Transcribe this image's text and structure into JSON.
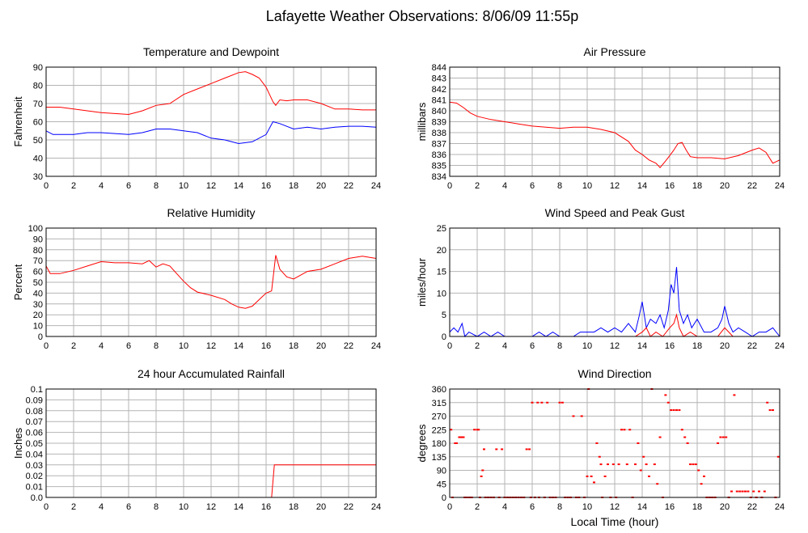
{
  "page": {
    "title": "Lafayette Weather Observations: 8/06/09 11:55p",
    "xlabel": "Local Time (hour)"
  },
  "chart_data": [
    {
      "type": "line",
      "title": "Temperature and Dewpoint",
      "xlabel": "",
      "ylabel": "Fahrenheit",
      "xlim": [
        0,
        24
      ],
      "ylim": [
        30,
        90
      ],
      "xticks": [
        0,
        2,
        4,
        6,
        8,
        10,
        12,
        14,
        16,
        18,
        20,
        22,
        24
      ],
      "yticks": [
        30,
        40,
        50,
        60,
        70,
        80,
        90
      ],
      "grid": true,
      "series": [
        {
          "color": "#ff0000",
          "x": [
            0,
            1,
            2,
            3,
            4,
            5,
            6,
            7,
            8,
            9,
            10,
            11,
            12,
            13,
            14,
            14.5,
            15,
            15.5,
            16,
            16.5,
            16.7,
            17,
            17.5,
            18,
            19,
            20,
            21,
            22,
            23,
            24
          ],
          "y": [
            68,
            68,
            67,
            66,
            65,
            64.5,
            64,
            66,
            69,
            70,
            75,
            78,
            81,
            84,
            87,
            87.5,
            86,
            84,
            79,
            71,
            69,
            72,
            71.5,
            72,
            72,
            70,
            67,
            67,
            66.5,
            66.5
          ]
        },
        {
          "color": "#0000ff",
          "x": [
            0,
            0.5,
            1,
            2,
            3,
            4,
            5,
            6,
            7,
            8,
            9,
            10,
            11,
            12,
            13,
            14,
            15,
            16,
            16.5,
            17,
            18,
            19,
            20,
            21,
            22,
            23,
            24
          ],
          "y": [
            55,
            53,
            53,
            53,
            54,
            54,
            53.5,
            53,
            54,
            56,
            56,
            55,
            54,
            51,
            50,
            48,
            49,
            53,
            60,
            59,
            56,
            57,
            56,
            57,
            57.5,
            57.5,
            57
          ]
        }
      ]
    },
    {
      "type": "line",
      "title": "Air Pressure",
      "xlabel": "",
      "ylabel": "millibars",
      "xlim": [
        0,
        24
      ],
      "ylim": [
        834,
        844
      ],
      "xticks": [
        0,
        2,
        4,
        6,
        8,
        10,
        12,
        14,
        16,
        18,
        20,
        22,
        24
      ],
      "yticks": [
        834,
        835,
        836,
        837,
        838,
        839,
        840,
        841,
        842,
        843,
        844
      ],
      "grid": true,
      "series": [
        {
          "color": "#ff0000",
          "x": [
            0,
            0.5,
            1,
            1.5,
            2,
            3,
            4,
            5,
            6,
            7,
            8,
            9,
            10,
            11,
            12,
            13,
            13.5,
            14,
            14.5,
            15,
            15.3,
            15.7,
            16,
            16.3,
            16.6,
            16.9,
            17.2,
            17.5,
            18,
            19,
            20,
            21,
            22,
            22.5,
            23,
            23.5,
            24
          ],
          "y": [
            840.8,
            840.7,
            840.3,
            839.8,
            839.5,
            839.2,
            839.0,
            838.8,
            838.6,
            838.5,
            838.4,
            838.5,
            838.5,
            838.3,
            838.0,
            837.2,
            836.4,
            836.0,
            835.5,
            835.2,
            834.8,
            835.4,
            835.9,
            836.4,
            837.0,
            837.1,
            836.4,
            835.8,
            835.7,
            835.7,
            835.6,
            835.9,
            836.4,
            836.6,
            836.2,
            835.2,
            835.5
          ]
        }
      ]
    },
    {
      "type": "line",
      "title": "Relative Humidity",
      "xlabel": "",
      "ylabel": "Percent",
      "xlim": [
        0,
        24
      ],
      "ylim": [
        0,
        100
      ],
      "xticks": [
        0,
        2,
        4,
        6,
        8,
        10,
        12,
        14,
        16,
        18,
        20,
        22,
        24
      ],
      "yticks": [
        0,
        10,
        20,
        30,
        40,
        50,
        60,
        70,
        80,
        90,
        100
      ],
      "grid": true,
      "series": [
        {
          "color": "#ff0000",
          "x": [
            0,
            0.3,
            1,
            2,
            3,
            4,
            5,
            6,
            7,
            7.5,
            8,
            8.5,
            9,
            9.5,
            10,
            10.5,
            11,
            12,
            13,
            13.5,
            14,
            14.5,
            15,
            15.5,
            16,
            16.4,
            16.7,
            17,
            17.5,
            18,
            19,
            20,
            21,
            22,
            23,
            24
          ],
          "y": [
            65,
            58,
            58,
            61,
            65,
            69,
            68,
            68,
            67,
            70,
            64,
            67,
            65,
            58,
            51,
            45,
            41,
            38,
            34,
            30,
            27,
            26,
            28,
            34,
            40,
            42,
            75,
            62,
            55,
            53,
            60,
            62,
            67,
            72,
            74,
            72
          ]
        }
      ]
    },
    {
      "type": "line",
      "title": "Wind Speed and Peak Gust",
      "xlabel": "",
      "ylabel": "miles/hour",
      "xlim": [
        0,
        24
      ],
      "ylim": [
        0,
        25
      ],
      "xticks": [
        0,
        2,
        4,
        6,
        8,
        10,
        12,
        14,
        16,
        18,
        20,
        22,
        24
      ],
      "yticks": [
        0,
        5,
        10,
        15,
        20,
        25
      ],
      "grid": true,
      "series": [
        {
          "color": "#0000ff",
          "x": [
            0,
            0.3,
            0.6,
            0.9,
            1.1,
            1.4,
            2,
            2.5,
            3,
            3.5,
            4,
            5,
            6,
            6.5,
            7,
            7.5,
            8,
            9,
            9.5,
            10,
            10.5,
            11,
            11.5,
            12,
            12.5,
            13,
            13.5,
            13.8,
            14,
            14.3,
            14.6,
            15,
            15.3,
            15.6,
            15.9,
            16.1,
            16.3,
            16.5,
            16.7,
            17,
            17.3,
            17.6,
            18,
            18.5,
            19,
            19.5,
            19.8,
            20,
            20.3,
            20.6,
            21,
            21.5,
            22,
            22.5,
            23,
            23.5,
            24
          ],
          "y": [
            1,
            2,
            1,
            3,
            0,
            1,
            0,
            1,
            0,
            1,
            0,
            0,
            0,
            1,
            0,
            1,
            0,
            0,
            1,
            1,
            1,
            2,
            1,
            2,
            1,
            3,
            1,
            5,
            8,
            2,
            4,
            3,
            5,
            2,
            6,
            12,
            10,
            16,
            6,
            3,
            5,
            2,
            4,
            1,
            1,
            2,
            4,
            7,
            3,
            1,
            2,
            1,
            0,
            1,
            1,
            2,
            0
          ]
        },
        {
          "color": "#ff0000",
          "x": [
            0,
            13.5,
            14,
            14.3,
            14.6,
            15,
            15.5,
            16,
            16.3,
            16.5,
            16.7,
            17,
            17.5,
            18,
            19.5,
            20,
            20.3,
            20.6,
            21,
            24
          ],
          "y": [
            0,
            0,
            1,
            2,
            0,
            1,
            0,
            2,
            3,
            5,
            2,
            0,
            1,
            0,
            0,
            2,
            1,
            0,
            0,
            0
          ]
        }
      ]
    },
    {
      "type": "line",
      "title": "24 hour Accumulated Rainfall",
      "xlabel": "",
      "ylabel": "Inches",
      "xlim": [
        0,
        24
      ],
      "ylim": [
        0,
        0.1
      ],
      "xticks": [
        0,
        2,
        4,
        6,
        8,
        10,
        12,
        14,
        16,
        18,
        20,
        22,
        24
      ],
      "yticks": [
        "0.0",
        "0.01",
        "0.02",
        "0.03",
        "0.04",
        "0.05",
        "0.06",
        "0.07",
        "0.08",
        "0.09",
        "0.1"
      ],
      "grid": true,
      "series": [
        {
          "color": "#ff0000",
          "x": [
            0,
            16.4,
            16.6,
            24
          ],
          "y": [
            0,
            0,
            0.03,
            0.03
          ]
        }
      ]
    },
    {
      "type": "scatter",
      "title": "Wind Direction",
      "xlabel": "Local Time (hour)",
      "ylabel": "degrees",
      "xlim": [
        0,
        24
      ],
      "ylim": [
        0,
        360
      ],
      "xticks": [
        0,
        2,
        4,
        6,
        8,
        10,
        12,
        14,
        16,
        18,
        20,
        22,
        24
      ],
      "yticks": [
        0,
        45,
        90,
        135,
        180,
        225,
        270,
        315,
        360
      ],
      "grid": true,
      "series": [
        {
          "color": "#ff0000",
          "x": [
            0.1,
            0.2,
            0.4,
            0.5,
            0.7,
            0.8,
            0.9,
            1.0,
            1.1,
            1.2,
            1.4,
            1.5,
            1.6,
            1.8,
            2.0,
            2.1,
            2.2,
            2.3,
            2.4,
            2.5,
            2.6,
            2.8,
            3.0,
            3.2,
            3.4,
            3.6,
            3.8,
            4.0,
            4.2,
            4.4,
            4.6,
            4.8,
            5.0,
            5.2,
            5.4,
            5.6,
            5.8,
            5.9,
            6.0,
            6.2,
            6.4,
            6.5,
            6.7,
            6.9,
            7.1,
            7.3,
            7.5,
            7.7,
            8.0,
            8.2,
            8.4,
            8.6,
            8.8,
            9.0,
            9.2,
            9.4,
            9.6,
            9.8,
            10.0,
            10.1,
            10.3,
            10.5,
            10.7,
            10.9,
            11.0,
            11.1,
            11.3,
            11.5,
            11.7,
            11.9,
            12.1,
            12.3,
            12.5,
            12.7,
            12.9,
            13.1,
            13.3,
            13.5,
            13.7,
            13.9,
            14.1,
            14.3,
            14.5,
            14.7,
            14.9,
            15.1,
            15.3,
            15.5,
            15.7,
            15.9,
            16.1,
            16.3,
            16.5,
            16.7,
            16.9,
            17.1,
            17.3,
            17.5,
            17.7,
            17.9,
            18.1,
            18.3,
            18.5,
            18.7,
            18.9,
            19.1,
            19.3,
            19.5,
            19.7,
            19.9,
            20.1,
            20.3,
            20.5,
            20.7,
            20.9,
            21.1,
            21.3,
            21.5,
            21.7,
            21.9,
            22.1,
            22.3,
            22.5,
            22.7,
            22.9,
            23.1,
            23.3,
            23.5,
            23.7,
            23.9
          ],
          "y": [
            225,
            0,
            180,
            180,
            200,
            200,
            200,
            200,
            0,
            0,
            0,
            0,
            0,
            225,
            225,
            225,
            0,
            70,
            90,
            160,
            0,
            0,
            0,
            0,
            160,
            0,
            160,
            0,
            0,
            0,
            0,
            0,
            0,
            0,
            0,
            160,
            160,
            0,
            315,
            0,
            315,
            0,
            315,
            0,
            315,
            0,
            0,
            0,
            315,
            315,
            0,
            0,
            0,
            270,
            0,
            0,
            270,
            0,
            70,
            360,
            70,
            50,
            180,
            135,
            110,
            0,
            70,
            110,
            0,
            110,
            0,
            110,
            225,
            225,
            110,
            225,
            0,
            110,
            180,
            90,
            135,
            110,
            70,
            360,
            110,
            45,
            200,
            0,
            340,
            315,
            290,
            290,
            290,
            290,
            225,
            200,
            180,
            110,
            110,
            110,
            90,
            45,
            70,
            0,
            0,
            0,
            0,
            180,
            200,
            200,
            200,
            0,
            20,
            340,
            20,
            20,
            20,
            20,
            20,
            0,
            20,
            0,
            20,
            0,
            20,
            315,
            290,
            290,
            0,
            135
          ]
        }
      ]
    }
  ]
}
